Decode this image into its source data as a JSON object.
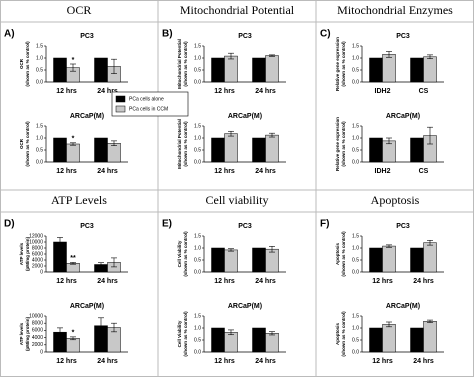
{
  "headers": [
    "OCR",
    "Mitochondrial Potential",
    "Mitochondrial Enzymes",
    "ATP Levels",
    "Cell viability",
    "Apoptosis"
  ],
  "panel_labels": [
    "A)",
    "B)",
    "C)",
    "D)",
    "E)",
    "F)"
  ],
  "legend": [
    {
      "name": "PCa cells alone",
      "color": "#000000"
    },
    {
      "name": "PCa cells in CCM",
      "color": "#c8c8c8"
    }
  ],
  "chart_data": [
    {
      "type": "bar",
      "title": "PC3",
      "ylabel": [
        "OCR",
        "(shown as % control)"
      ],
      "categories": [
        "12 hrs",
        "24 hrs"
      ],
      "series": [
        {
          "color": "#000000",
          "values": [
            1.0,
            1.0
          ]
        },
        {
          "color": "#c8c8c8",
          "values": [
            0.6,
            0.65
          ],
          "errors": [
            0.15,
            0.3
          ]
        }
      ],
      "ylim": [
        0,
        1.5
      ],
      "yticks": [
        {
          "value": 0,
          "label": "0.0"
        },
        {
          "value": 0.5,
          "label": "0.5"
        },
        {
          "value": 1,
          "label": "1.0"
        },
        {
          "value": 1.5,
          "label": "1.5"
        }
      ],
      "annotations": [
        {
          "text": "*",
          "x": "12 hrs"
        }
      ]
    },
    {
      "type": "bar",
      "title": "ARCaP(M)",
      "ylabel": [
        "OCR",
        "(shown as % control)"
      ],
      "categories": [
        "12 hrs",
        "24 hrs"
      ],
      "series": [
        {
          "color": "#000000",
          "values": [
            1.0,
            1.0
          ]
        },
        {
          "color": "#c8c8c8",
          "values": [
            0.75,
            0.78
          ],
          "errors": [
            0.05,
            0.1
          ]
        }
      ],
      "ylim": [
        0,
        1.5
      ],
      "yticks": [
        {
          "value": 0,
          "label": "0.0"
        },
        {
          "value": 0.5,
          "label": "0.5"
        },
        {
          "value": 1,
          "label": "1.0"
        },
        {
          "value": 1.5,
          "label": "1.5"
        }
      ],
      "annotations": [
        {
          "text": "*",
          "x": "12 hrs"
        }
      ]
    },
    {
      "type": "bar",
      "title": "PC3",
      "ylabel": [
        "Mitochondrial Potential",
        "(shown as % control)"
      ],
      "categories": [
        "12 hrs",
        "24 hrs"
      ],
      "series": [
        {
          "color": "#000000",
          "values": [
            1.0,
            1.0
          ]
        },
        {
          "color": "#c8c8c8",
          "values": [
            1.08,
            1.1
          ],
          "errors": [
            0.12,
            0.03
          ]
        }
      ],
      "ylim": [
        0,
        1.5
      ],
      "yticks": [
        {
          "value": 0,
          "label": "0.0"
        },
        {
          "value": 0.5,
          "label": "0.5"
        },
        {
          "value": 1,
          "label": "1.0"
        },
        {
          "value": 1.5,
          "label": "1.5"
        }
      ]
    },
    {
      "type": "bar",
      "title": "ARCaP(M)",
      "ylabel": [
        "Mitochondrial Potential",
        "(shown as % control)"
      ],
      "categories": [
        "12 hrs",
        "24 hrs"
      ],
      "series": [
        {
          "color": "#000000",
          "values": [
            1.0,
            1.0
          ]
        },
        {
          "color": "#c8c8c8",
          "values": [
            1.18,
            1.12
          ],
          "errors": [
            0.1,
            0.08
          ]
        }
      ],
      "ylim": [
        0,
        1.5
      ],
      "yticks": [
        {
          "value": 0,
          "label": "0.0"
        },
        {
          "value": 0.5,
          "label": "0.5"
        },
        {
          "value": 1,
          "label": "1.0"
        },
        {
          "value": 1.5,
          "label": "1.5"
        }
      ]
    },
    {
      "type": "bar",
      "title": "PC3",
      "ylabel": [
        "Relative gene expression",
        "(shown as % control)"
      ],
      "categories": [
        "IDH2",
        "CS"
      ],
      "series": [
        {
          "color": "#000000",
          "values": [
            1.0,
            1.0
          ]
        },
        {
          "color": "#c8c8c8",
          "values": [
            1.15,
            1.05
          ],
          "errors": [
            0.12,
            0.08
          ]
        }
      ],
      "ylim": [
        0,
        1.5
      ],
      "yticks": [
        {
          "value": 0,
          "label": "0.0"
        },
        {
          "value": 0.5,
          "label": "0.5"
        },
        {
          "value": 1,
          "label": "1.0"
        },
        {
          "value": 1.5,
          "label": "1.5"
        }
      ]
    },
    {
      "type": "bar",
      "title": "ARCaP(M)",
      "ylabel": [
        "Relative gene expression",
        "(shown as % control)"
      ],
      "categories": [
        "IDH2",
        "CS"
      ],
      "series": [
        {
          "color": "#000000",
          "values": [
            1.0,
            1.0
          ]
        },
        {
          "color": "#c8c8c8",
          "values": [
            0.88,
            1.1
          ],
          "errors": [
            0.12,
            0.35
          ]
        }
      ],
      "ylim": [
        0,
        1.5
      ],
      "yticks": [
        {
          "value": 0,
          "label": "0.0"
        },
        {
          "value": 0.5,
          "label": "0.5"
        },
        {
          "value": 1,
          "label": "1.0"
        },
        {
          "value": 1.5,
          "label": "1.5"
        }
      ]
    },
    {
      "type": "bar",
      "title": "PC3",
      "ylabel": [
        "ATP levels",
        "(pM/mg protein)"
      ],
      "categories": [
        "12 hrs",
        "24 hrs"
      ],
      "series": [
        {
          "color": "#000000",
          "values": [
            10000,
            2500
          ],
          "errors": [
            1500,
            600
          ]
        },
        {
          "color": "#c8c8c8",
          "values": [
            2900,
            3200
          ],
          "errors": [
            300,
            1500
          ]
        }
      ],
      "ylim": [
        0,
        12000
      ],
      "yticks": [
        0,
        2000,
        4000,
        6000,
        8000,
        10000,
        12000
      ],
      "annotations": [
        {
          "text": "**",
          "x": "12 hrs"
        }
      ]
    },
    {
      "type": "bar",
      "title": "ARCaP(M)",
      "ylabel": [
        "ATP levels",
        "(pM/mg protein)"
      ],
      "categories": [
        "12 hrs",
        "24 hrs"
      ],
      "series": [
        {
          "color": "#000000",
          "values": [
            5500,
            7300
          ],
          "errors": [
            1200,
            2200
          ]
        },
        {
          "color": "#c8c8c8",
          "values": [
            3800,
            6800
          ],
          "errors": [
            400,
            1200
          ]
        }
      ],
      "ylim": [
        0,
        10000
      ],
      "yticks": [
        0,
        2000,
        4000,
        6000,
        8000,
        10000
      ],
      "annotations": [
        {
          "text": "*",
          "x": "12 hrs"
        }
      ]
    },
    {
      "type": "bar",
      "title": "PC3",
      "ylabel": [
        "Cell Viability",
        "(shown as % control)"
      ],
      "categories": [
        "12 hrs",
        "24 hrs"
      ],
      "series": [
        {
          "color": "#000000",
          "values": [
            1.0,
            1.0
          ]
        },
        {
          "color": "#c8c8c8",
          "values": [
            0.92,
            0.95
          ],
          "errors": [
            0.05,
            0.12
          ]
        }
      ],
      "ylim": [
        0,
        1.5
      ],
      "yticks": [
        {
          "value": 0,
          "label": "0.0"
        },
        {
          "value": 0.5,
          "label": "0.5"
        },
        {
          "value": 1,
          "label": "1.0"
        },
        {
          "value": 1.5,
          "label": "1.5"
        }
      ]
    },
    {
      "type": "bar",
      "title": "ARCaP(M)",
      "ylabel": [
        "Cell Viability",
        "(shown as % control)"
      ],
      "categories": [
        "12 hrs",
        "24 hrs"
      ],
      "series": [
        {
          "color": "#000000",
          "values": [
            1.0,
            1.0
          ]
        },
        {
          "color": "#c8c8c8",
          "values": [
            0.82,
            0.78
          ],
          "errors": [
            0.1,
            0.07
          ]
        }
      ],
      "ylim": [
        0,
        1.5
      ],
      "yticks": [
        {
          "value": 0,
          "label": "0.0"
        },
        {
          "value": 0.5,
          "label": "0.5"
        },
        {
          "value": 1,
          "label": "1.0"
        },
        {
          "value": 1.5,
          "label": "1.5"
        }
      ]
    },
    {
      "type": "bar",
      "title": "PC3",
      "ylabel": [
        "Apoptosis",
        "(shown as % control)"
      ],
      "categories": [
        "12 hrs",
        "24 hrs"
      ],
      "series": [
        {
          "color": "#000000",
          "values": [
            1.0,
            1.0
          ]
        },
        {
          "color": "#c8c8c8",
          "values": [
            1.08,
            1.22
          ],
          "errors": [
            0.05,
            0.1
          ]
        }
      ],
      "ylim": [
        0,
        1.5
      ],
      "yticks": [
        {
          "value": 0,
          "label": "0.0"
        },
        {
          "value": 0.5,
          "label": "0.5"
        },
        {
          "value": 1,
          "label": "1.0"
        },
        {
          "value": 1.5,
          "label": "1.5"
        }
      ]
    },
    {
      "type": "bar",
      "title": "ARCaP(M)",
      "ylabel": [
        "Apoptosis",
        "(shown as % control)"
      ],
      "categories": [
        "12 hrs",
        "24 hrs"
      ],
      "series": [
        {
          "color": "#000000",
          "values": [
            1.0,
            1.0
          ]
        },
        {
          "color": "#c8c8c8",
          "values": [
            1.15,
            1.28
          ],
          "errors": [
            0.1,
            0.05
          ]
        }
      ],
      "ylim": [
        0,
        1.5
      ],
      "yticks": [
        {
          "value": 0,
          "label": "0.0"
        },
        {
          "value": 0.5,
          "label": "0.5"
        },
        {
          "value": 1,
          "label": "1.0"
        },
        {
          "value": 1.5,
          "label": "1.5"
        }
      ]
    }
  ]
}
